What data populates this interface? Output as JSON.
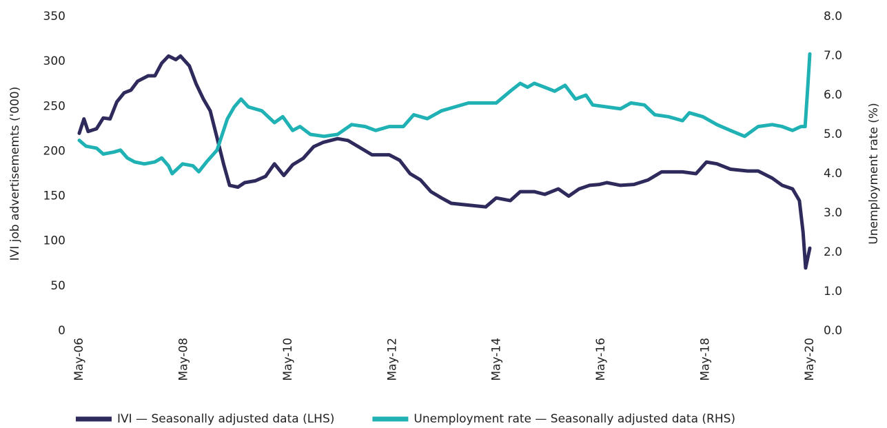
{
  "chart_data": {
    "type": "line",
    "ylabel": "IVI job advertisememts ('000)",
    "y2label": "Unemployment rate (%)",
    "xlim": [
      2006.33,
      2020.33
    ],
    "xticks": [
      {
        "value": 2006.33,
        "label": "May-06"
      },
      {
        "value": 2008.33,
        "label": "May-08"
      },
      {
        "value": 2010.33,
        "label": "May-10"
      },
      {
        "value": 2012.33,
        "label": "May-12"
      },
      {
        "value": 2014.33,
        "label": "May-14"
      },
      {
        "value": 2016.33,
        "label": "May-16"
      },
      {
        "value": 2018.33,
        "label": "May-18"
      },
      {
        "value": 2020.33,
        "label": "May-20"
      }
    ],
    "ylim": [
      0,
      350
    ],
    "yticks": [
      0,
      50,
      100,
      150,
      200,
      250,
      300,
      350
    ],
    "y2lim": [
      0,
      8
    ],
    "y2ticks": [
      {
        "value": 0,
        "label": "0.0"
      },
      {
        "value": 1,
        "label": "1.0"
      },
      {
        "value": 2,
        "label": "2.0"
      },
      {
        "value": 3,
        "label": "3.0"
      },
      {
        "value": 4,
        "label": "4.0"
      },
      {
        "value": 5,
        "label": "5.0"
      },
      {
        "value": 6,
        "label": "6.0"
      },
      {
        "value": 7,
        "label": "7.0"
      },
      {
        "value": 8,
        "label": "8.0"
      }
    ],
    "series": [
      {
        "name": "IVI — Seasonally adjusted data (LHS)",
        "color": "#2e2a5c",
        "axis": "y",
        "x": [
          2006.33,
          2006.42,
          2006.5,
          2006.66,
          2006.79,
          2006.92,
          2007.05,
          2007.19,
          2007.32,
          2007.45,
          2007.65,
          2007.78,
          2007.91,
          2008.04,
          2008.18,
          2008.27,
          2008.44,
          2008.57,
          2008.71,
          2008.84,
          2008.97,
          2009.1,
          2009.21,
          2009.37,
          2009.5,
          2009.7,
          2009.9,
          2010.07,
          2010.25,
          2010.42,
          2010.62,
          2010.82,
          2011.01,
          2011.28,
          2011.48,
          2011.68,
          2011.94,
          2012.27,
          2012.47,
          2012.67,
          2012.87,
          2013.07,
          2013.27,
          2013.46,
          2013.79,
          2014.12,
          2014.32,
          2014.59,
          2014.78,
          2015.05,
          2015.25,
          2015.51,
          2015.71,
          2015.91,
          2016.11,
          2016.3,
          2016.44,
          2016.7,
          2016.96,
          2017.23,
          2017.49,
          2017.89,
          2018.15,
          2018.35,
          2018.55,
          2018.81,
          2019.14,
          2019.34,
          2019.61,
          2019.8,
          2020.0,
          2020.13,
          2020.2,
          2020.25,
          2020.33
        ],
        "values": [
          220,
          236,
          222,
          225,
          237,
          236,
          255,
          265,
          268,
          278,
          284,
          284,
          298,
          306,
          302,
          306,
          295,
          275,
          258,
          245,
          215,
          185,
          162,
          160,
          165,
          167,
          172,
          186,
          173,
          185,
          192,
          205,
          210,
          214,
          212,
          205,
          196,
          196,
          190,
          175,
          168,
          155,
          148,
          142,
          140,
          138,
          148,
          145,
          155,
          155,
          152,
          158,
          150,
          158,
          162,
          163,
          165,
          162,
          163,
          168,
          177,
          177,
          175,
          188,
          186,
          180,
          178,
          178,
          170,
          162,
          158,
          145,
          110,
          70,
          92
        ]
      },
      {
        "name": "Unemployment rate — Seasonally adjusted data (RHS)",
        "color": "#1fb1b4",
        "axis": "y2",
        "x": [
          2006.33,
          2006.46,
          2006.66,
          2006.79,
          2006.99,
          2007.12,
          2007.25,
          2007.39,
          2007.58,
          2007.78,
          2007.91,
          2008.04,
          2008.11,
          2008.31,
          2008.51,
          2008.62,
          2008.77,
          2008.97,
          2009.17,
          2009.3,
          2009.43,
          2009.57,
          2009.83,
          2010.07,
          2010.23,
          2010.42,
          2010.56,
          2010.76,
          2011.02,
          2011.28,
          2011.55,
          2011.81,
          2012.01,
          2012.27,
          2012.54,
          2012.74,
          2013.0,
          2013.27,
          2013.53,
          2013.79,
          2014.06,
          2014.32,
          2014.59,
          2014.78,
          2014.92,
          2015.05,
          2015.25,
          2015.44,
          2015.64,
          2015.84,
          2016.04,
          2016.17,
          2016.44,
          2016.7,
          2016.9,
          2017.16,
          2017.36,
          2017.62,
          2017.89,
          2018.02,
          2018.28,
          2018.55,
          2018.81,
          2019.08,
          2019.34,
          2019.61,
          2019.8,
          2020.0,
          2020.16,
          2020.24,
          2020.29,
          2020.33
        ],
        "values": [
          4.85,
          4.7,
          4.65,
          4.5,
          4.55,
          4.6,
          4.4,
          4.3,
          4.25,
          4.3,
          4.4,
          4.2,
          4.0,
          4.25,
          4.2,
          4.05,
          4.3,
          4.6,
          5.4,
          5.7,
          5.9,
          5.7,
          5.6,
          5.3,
          5.45,
          5.1,
          5.2,
          5.0,
          4.95,
          5.0,
          5.25,
          5.2,
          5.1,
          5.2,
          5.2,
          5.5,
          5.4,
          5.6,
          5.7,
          5.8,
          5.8,
          5.8,
          6.1,
          6.3,
          6.2,
          6.3,
          6.2,
          6.1,
          6.25,
          5.9,
          6.0,
          5.75,
          5.7,
          5.65,
          5.8,
          5.75,
          5.5,
          5.45,
          5.35,
          5.55,
          5.45,
          5.25,
          5.1,
          4.95,
          5.2,
          5.25,
          5.2,
          5.1,
          5.2,
          5.2,
          6.2,
          7.05
        ]
      }
    ]
  }
}
